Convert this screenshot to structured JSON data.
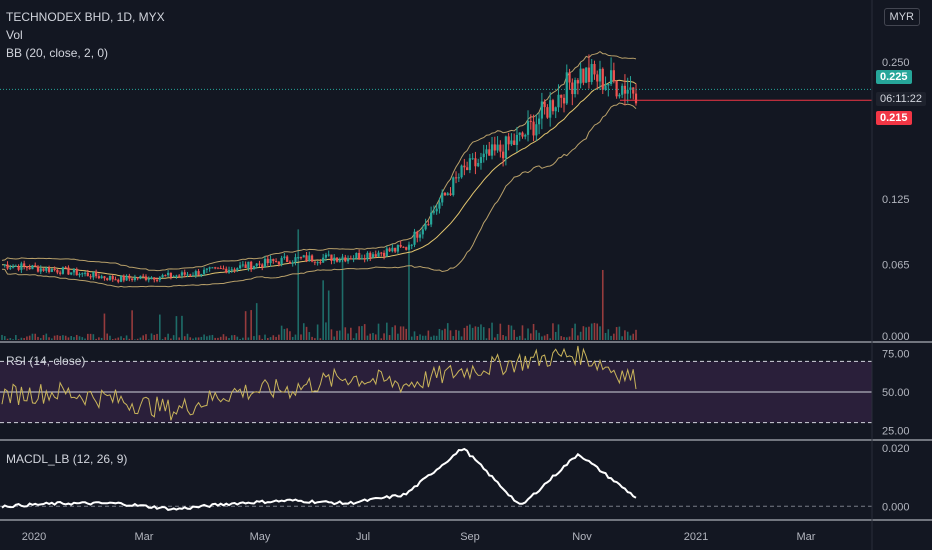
{
  "header": {
    "title": "TECHNODEX BHD, 1D, MYX",
    "vol_label": "Vol",
    "bb_label": "BB (20, close, 2, 0)",
    "currency_badge": "MYR"
  },
  "price_tags": {
    "last": "0.225",
    "countdown": "06:11:22",
    "level": "0.215"
  },
  "colors": {
    "background": "#131722",
    "up": "#26a69a",
    "down": "#ef5350",
    "bb_band": "#b8a06a",
    "bb_basis": "#e0c36d",
    "rsi_line": "#c9b45b",
    "rsi_band": "#2a1f3a",
    "macd_line": "#ffffff",
    "level_line": "#f23645"
  },
  "chart_data": [
    {
      "type": "line",
      "name": "price",
      "title": "TECHNODEX BHD, 1D, MYX",
      "y_ticks": [
        "0.250",
        "0.125",
        "0.065",
        "0.000"
      ],
      "x_ticks": [
        "2020",
        "Mar",
        "May",
        "Jul",
        "Sep",
        "Nov",
        "2021",
        "Mar"
      ],
      "x": [
        "2020-01",
        "2020-02",
        "2020-03",
        "2020-04",
        "2020-05",
        "2020-06",
        "2020-07",
        "2020-08",
        "2020-09",
        "2020-10",
        "2020-11",
        "2020-11-end"
      ],
      "series": [
        {
          "values": [
            0.065,
            0.06,
            0.052,
            0.055,
            0.062,
            0.07,
            0.072,
            0.08,
            0.15,
            0.18,
            0.24,
            0.225
          ]
        }
      ],
      "last_price": 0.225,
      "marked_level": 0.215
    },
    {
      "type": "line",
      "name": "RSI (14, close)",
      "title": "RSI (14, close)",
      "y_ticks": [
        "75.00",
        "50.00",
        "25.00"
      ],
      "levels": [
        70,
        50,
        30
      ],
      "series": [
        {
          "values": [
            48,
            50,
            45,
            38,
            50,
            52,
            60,
            55,
            64,
            70,
            75,
            58
          ]
        }
      ]
    },
    {
      "type": "line",
      "name": "MACDL_LB (12, 26, 9)",
      "title": "MACDL_LB (12, 26, 9)",
      "y_ticks": [
        "0.020",
        "0.000"
      ],
      "series": [
        {
          "values": [
            0.0,
            0.001,
            0.001,
            -0.001,
            0.001,
            0.002,
            0.001,
            0.004,
            0.02,
            0.0,
            0.018,
            0.003
          ]
        }
      ]
    }
  ]
}
